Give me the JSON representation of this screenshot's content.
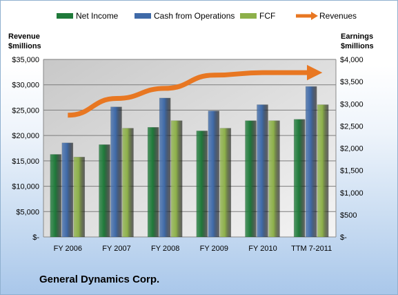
{
  "chart_data": {
    "type": "bar",
    "categories": [
      "FY 2006",
      "FY 2007",
      "FY 2008",
      "FY 2009",
      "FY 2010",
      "TTM 7-2011"
    ],
    "series": [
      {
        "name": "Net Income",
        "axis": "right",
        "color": "#1f7a3a",
        "values": [
          1860,
          2080,
          2470,
          2390,
          2620,
          2650
        ]
      },
      {
        "name": "Cash from Operations",
        "axis": "right",
        "color": "#3f6aa8",
        "values": [
          2120,
          2930,
          3130,
          2840,
          2980,
          3390
        ]
      },
      {
        "name": "FCF",
        "axis": "right",
        "color": "#8db04a",
        "values": [
          1800,
          2450,
          2620,
          2450,
          2620,
          2980
        ]
      },
      {
        "name": "Revenues",
        "type": "line",
        "axis": "left",
        "color": "#e87722",
        "values": [
          24000,
          27300,
          29300,
          31900,
          32400,
          32400
        ]
      }
    ],
    "y_left": {
      "label_line1": "Revenue",
      "label_line2": "$millions",
      "min": 0,
      "max": 35000,
      "ticks": [
        "$-",
        "$5,000",
        "$10,000",
        "$15,000",
        "$20,000",
        "$25,000",
        "$30,000",
        "$35,000"
      ]
    },
    "y_right": {
      "label_line1": "Earnings",
      "label_line2": "$millions",
      "min": 0,
      "max": 4000,
      "ticks": [
        "$-",
        "$500",
        "$1,000",
        "$1,500",
        "$2,000",
        "$2,500",
        "$3,000",
        "$3,500",
        "$4,000"
      ]
    },
    "legend_position": "top",
    "grid": true
  },
  "company": "General Dynamics Corp."
}
